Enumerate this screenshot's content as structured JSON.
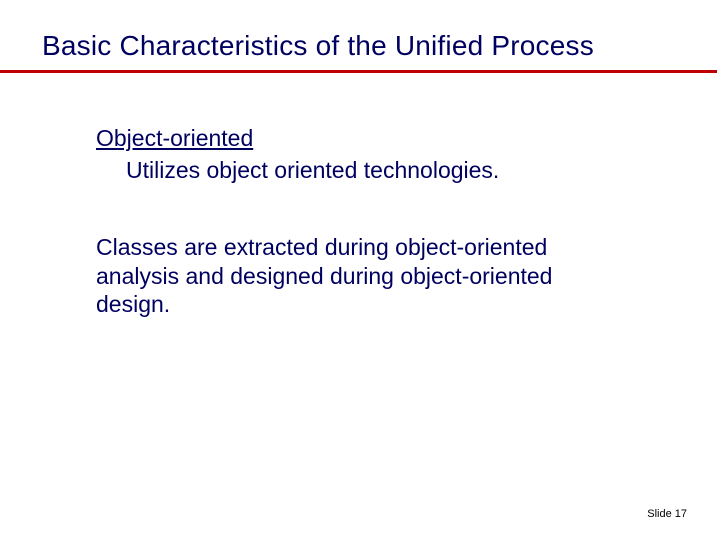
{
  "colors": {
    "title": "#000060",
    "rule": "#c00000",
    "body": "#000060",
    "footer": "#000000"
  },
  "title": "Basic Characteristics of the Unified Process",
  "content": {
    "heading": "Object-oriented",
    "line1": "Utilizes object oriented technologies.",
    "paragraph": "Classes are extracted during object-oriented analysis and designed during object-oriented design."
  },
  "footer": "Slide  17"
}
